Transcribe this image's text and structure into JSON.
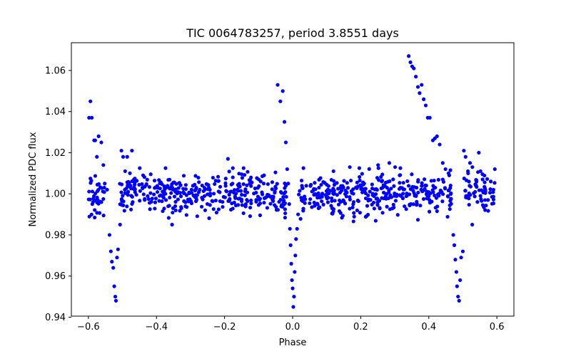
{
  "chart_data": {
    "type": "scatter",
    "title": "TIC 0064783257, period 3.8551 days",
    "xlabel": "Phase",
    "ylabel": "Normalized PDC flux",
    "xlim": [
      -0.65,
      0.65
    ],
    "ylim": [
      0.9405,
      1.0735
    ],
    "x_ticks": [
      -0.6,
      -0.4,
      -0.2,
      0.0,
      0.2,
      0.4,
      0.6
    ],
    "x_tick_labels": [
      "−0.6",
      "−0.4",
      "−0.2",
      "0.0",
      "0.2",
      "0.4",
      "0.6"
    ],
    "y_ticks": [
      0.94,
      0.96,
      0.98,
      1.0,
      1.02,
      1.04,
      1.06
    ],
    "y_tick_labels": [
      "0.94",
      "0.96",
      "0.98",
      "1.00",
      "1.02",
      "1.04",
      "1.06"
    ],
    "grid": false,
    "marker_color": "#0000ff",
    "series": [
      {
        "points": [
          [
            -0.598,
            1.037
          ],
          [
            -0.594,
            1.045
          ],
          [
            -0.59,
            1.037
          ],
          [
            -0.583,
            1.026
          ],
          [
            -0.58,
            1.026
          ],
          [
            -0.575,
            1.018
          ],
          [
            -0.57,
            1.028
          ],
          [
            -0.562,
            1.025
          ],
          [
            -0.556,
            1.014
          ],
          [
            -0.552,
            1.005
          ],
          [
            -0.545,
            1.002
          ],
          [
            -0.538,
            0.98
          ],
          [
            -0.534,
            0.972
          ],
          [
            -0.531,
            0.967
          ],
          [
            -0.527,
            0.964
          ],
          [
            -0.524,
            0.955
          ],
          [
            -0.521,
            0.95
          ],
          [
            -0.519,
            0.948
          ],
          [
            -0.516,
            0.969
          ],
          [
            -0.513,
            0.973
          ],
          [
            -0.507,
            0.985
          ],
          [
            -0.503,
            1.021
          ],
          [
            -0.498,
            1.018
          ],
          [
            -0.492,
            1.011
          ],
          [
            -0.486,
            1.018
          ],
          [
            -0.478,
            1.01
          ],
          [
            -0.472,
            1.021
          ],
          [
            -0.466,
            1.007
          ],
          [
            -0.044,
            1.053
          ],
          [
            -0.036,
            1.045
          ],
          [
            -0.029,
            1.05
          ],
          [
            -0.024,
            1.035
          ],
          [
            -0.02,
            1.025
          ],
          [
            -0.016,
            1.012
          ],
          [
            -0.013,
            1.005
          ],
          [
            -0.01,
            0.995
          ],
          [
            -0.008,
            0.983
          ],
          [
            -0.006,
            0.975
          ],
          [
            -0.004,
            0.966
          ],
          [
            -0.002,
            0.958
          ],
          [
            0.0,
            0.954
          ],
          [
            0.002,
            0.945
          ],
          [
            0.004,
            0.95
          ],
          [
            0.006,
            0.962
          ],
          [
            0.008,
            0.97
          ],
          [
            0.01,
            0.978
          ],
          [
            0.013,
            0.983
          ],
          [
            0.016,
            0.99
          ],
          [
            0.341,
            1.067
          ],
          [
            0.346,
            1.064
          ],
          [
            0.351,
            1.062
          ],
          [
            0.356,
            1.061
          ],
          [
            0.362,
            1.057
          ],
          [
            0.368,
            1.052
          ],
          [
            0.373,
            1.049
          ],
          [
            0.379,
            1.053
          ],
          [
            0.385,
            1.046
          ],
          [
            0.391,
            1.043
          ],
          [
            0.397,
            1.037
          ],
          [
            0.403,
            1.037
          ],
          [
            0.412,
            1.026
          ],
          [
            0.418,
            1.027
          ],
          [
            0.424,
            1.028
          ],
          [
            0.432,
            1.024
          ],
          [
            0.441,
            1.015
          ],
          [
            0.449,
            1.012
          ],
          [
            0.458,
            1.01
          ],
          [
            0.464,
            1.004
          ],
          [
            0.472,
            0.98
          ],
          [
            0.475,
            0.975
          ],
          [
            0.478,
            0.968
          ],
          [
            0.481,
            0.962
          ],
          [
            0.483,
            0.955
          ],
          [
            0.486,
            0.95
          ],
          [
            0.489,
            0.948
          ],
          [
            0.492,
            0.958
          ],
          [
            0.495,
            0.969
          ],
          [
            0.5,
            0.972
          ],
          [
            0.503,
            1.021
          ],
          [
            0.508,
            1.018
          ],
          [
            0.515,
            1.011
          ],
          [
            0.521,
            1.015
          ],
          [
            0.528,
            1.013
          ],
          [
            0.538,
            1.004
          ],
          [
            0.547,
            1.02
          ],
          [
            0.552,
            1.011
          ],
          [
            0.558,
            1.007
          ],
          [
            0.566,
            1.002
          ],
          [
            0.574,
            0.997
          ],
          [
            0.582,
            1.006
          ],
          [
            0.59,
            1.002
          ],
          [
            0.594,
            1.012
          ],
          [
            -0.283,
            1.003
          ],
          [
            -0.257,
            0.992
          ],
          [
            -0.19,
            1.017
          ],
          [
            -0.126,
            1.005
          ],
          [
            -0.084,
            1.009
          ],
          [
            0.12,
            1.011
          ],
          [
            0.168,
            1.013
          ],
          [
            0.251,
            1.014
          ],
          [
            0.284,
            1.015
          ],
          [
            0.301,
            1.013
          ]
        ]
      }
    ]
  }
}
